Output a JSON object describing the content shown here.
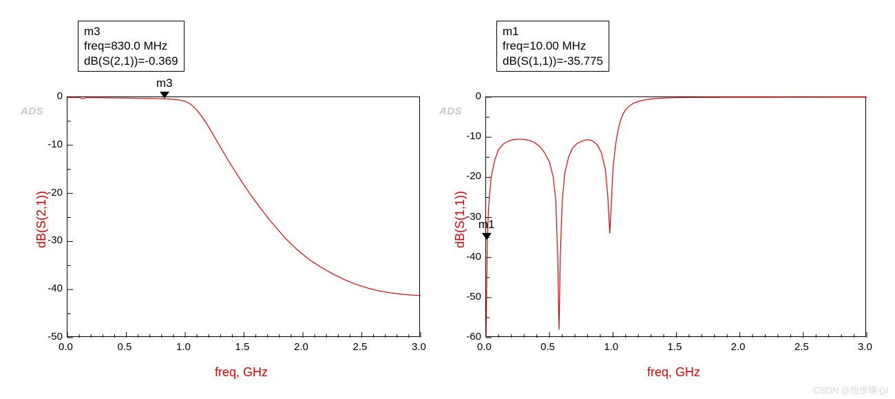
{
  "watermark": "CSDN @怡步晓心l",
  "ads_label": "ADS",
  "left": {
    "marker_box": {
      "name": "m3",
      "freq_line": "freq=830.0 MHz",
      "val_line": "dB(S(2,1))=-0.369"
    },
    "marker_point": {
      "label": "m3",
      "x_ghz": 0.83,
      "y_db": -0.369
    },
    "ylabel": "dB(S(2,1))",
    "xlabel": "freq, GHz",
    "plot": {
      "type": "line",
      "line_color": "#e00000",
      "line_width": 1.2,
      "frame_color": "#000000",
      "background_color": "#ffffff",
      "xlim": [
        0.0,
        3.0
      ],
      "xticks": [
        0.0,
        0.5,
        1.0,
        1.5,
        2.0,
        2.5,
        3.0
      ],
      "xtick_labels": [
        "0.0",
        "0.5",
        "1.0",
        "1.5",
        "2.0",
        "2.5",
        "3.0"
      ],
      "ylim": [
        -50,
        0
      ],
      "yticks": [
        -50,
        -40,
        -30,
        -20,
        -10,
        0
      ],
      "ytick_labels": [
        "-50",
        "-40",
        "-30",
        "-20",
        "-10",
        "0"
      ],
      "tick_font_size": 15,
      "ylabel_color": "#e00000",
      "xlabel_color": "#e00000",
      "data": [
        [
          0.0,
          -0.05
        ],
        [
          0.05,
          -0.05
        ],
        [
          0.1,
          -0.08
        ],
        [
          0.13,
          -0.35
        ],
        [
          0.16,
          -0.1
        ],
        [
          0.2,
          -0.1
        ],
        [
          0.3,
          -0.12
        ],
        [
          0.4,
          -0.15
        ],
        [
          0.5,
          -0.18
        ],
        [
          0.6,
          -0.22
        ],
        [
          0.7,
          -0.27
        ],
        [
          0.8,
          -0.33
        ],
        [
          0.83,
          -0.37
        ],
        [
          0.9,
          -0.45
        ],
        [
          0.95,
          -0.6
        ],
        [
          1.0,
          -0.85
        ],
        [
          1.05,
          -1.5
        ],
        [
          1.1,
          -2.7
        ],
        [
          1.15,
          -4.3
        ],
        [
          1.2,
          -6.2
        ],
        [
          1.25,
          -8.3
        ],
        [
          1.3,
          -10.4
        ],
        [
          1.35,
          -12.5
        ],
        [
          1.4,
          -14.5
        ],
        [
          1.45,
          -16.4
        ],
        [
          1.5,
          -18.3
        ],
        [
          1.55,
          -20.1
        ],
        [
          1.6,
          -21.8
        ],
        [
          1.65,
          -23.4
        ],
        [
          1.7,
          -25.0
        ],
        [
          1.75,
          -26.5
        ],
        [
          1.8,
          -27.9
        ],
        [
          1.85,
          -29.3
        ],
        [
          1.9,
          -30.5
        ],
        [
          1.95,
          -31.7
        ],
        [
          2.0,
          -32.7
        ],
        [
          2.05,
          -33.7
        ],
        [
          2.1,
          -34.5
        ],
        [
          2.15,
          -35.3
        ],
        [
          2.2,
          -36.0
        ],
        [
          2.25,
          -36.7
        ],
        [
          2.3,
          -37.3
        ],
        [
          2.35,
          -37.9
        ],
        [
          2.4,
          -38.4
        ],
        [
          2.45,
          -38.9
        ],
        [
          2.5,
          -39.3
        ],
        [
          2.55,
          -39.7
        ],
        [
          2.6,
          -40.0
        ],
        [
          2.65,
          -40.3
        ],
        [
          2.7,
          -40.5
        ],
        [
          2.75,
          -40.7
        ],
        [
          2.8,
          -40.85
        ],
        [
          2.85,
          -41.0
        ],
        [
          2.9,
          -41.1
        ],
        [
          2.95,
          -41.18
        ],
        [
          3.0,
          -41.25
        ]
      ]
    }
  },
  "right": {
    "marker_box": {
      "name": "m1",
      "freq_line": "freq=10.00 MHz",
      "val_line": "dB(S(1,1))=-35.775"
    },
    "marker_point": {
      "label": "m1",
      "x_ghz": 0.01,
      "y_db": -35.775
    },
    "ylabel": "dB(S(1,1))",
    "xlabel": "freq, GHz",
    "plot": {
      "type": "line",
      "line_color": "#e00000",
      "line_width": 1.2,
      "frame_color": "#000000",
      "background_color": "#ffffff",
      "xlim": [
        0.0,
        3.0
      ],
      "xticks": [
        0.0,
        0.5,
        1.0,
        1.5,
        2.0,
        2.5,
        3.0
      ],
      "xtick_labels": [
        "0.0",
        "0.5",
        "1.0",
        "1.5",
        "2.0",
        "2.5",
        "3.0"
      ],
      "ylim": [
        -60,
        0
      ],
      "yticks": [
        -60,
        -50,
        -40,
        -30,
        -20,
        -10,
        0
      ],
      "ytick_labels": [
        "-60",
        "-50",
        "-40",
        "-30",
        "-20",
        "-10",
        "0"
      ],
      "tick_font_size": 15,
      "ylabel_color": "#e00000",
      "xlabel_color": "#e00000",
      "data": [
        [
          0.0,
          -60.0
        ],
        [
          0.01,
          -35.78
        ],
        [
          0.02,
          -27.5
        ],
        [
          0.04,
          -20.0
        ],
        [
          0.07,
          -15.5
        ],
        [
          0.1,
          -13.0
        ],
        [
          0.14,
          -11.6
        ],
        [
          0.18,
          -10.9
        ],
        [
          0.22,
          -10.55
        ],
        [
          0.26,
          -10.5
        ],
        [
          0.3,
          -10.55
        ],
        [
          0.34,
          -10.8
        ],
        [
          0.38,
          -11.3
        ],
        [
          0.42,
          -12.2
        ],
        [
          0.46,
          -13.8
        ],
        [
          0.5,
          -16.2
        ],
        [
          0.53,
          -20.0
        ],
        [
          0.55,
          -26.0
        ],
        [
          0.565,
          -40.0
        ],
        [
          0.575,
          -58.0
        ],
        [
          0.585,
          -40.0
        ],
        [
          0.6,
          -26.0
        ],
        [
          0.62,
          -19.0
        ],
        [
          0.65,
          -15.0
        ],
        [
          0.68,
          -12.8
        ],
        [
          0.72,
          -11.5
        ],
        [
          0.76,
          -10.9
        ],
        [
          0.8,
          -10.6
        ],
        [
          0.84,
          -10.9
        ],
        [
          0.88,
          -12.0
        ],
        [
          0.91,
          -14.0
        ],
        [
          0.94,
          -18.0
        ],
        [
          0.96,
          -25.0
        ],
        [
          0.975,
          -34.0
        ],
        [
          0.985,
          -28.0
        ],
        [
          1.0,
          -18.0
        ],
        [
          1.02,
          -12.0
        ],
        [
          1.04,
          -8.2
        ],
        [
          1.06,
          -5.8
        ],
        [
          1.08,
          -4.2
        ],
        [
          1.1,
          -3.1
        ],
        [
          1.13,
          -2.2
        ],
        [
          1.16,
          -1.55
        ],
        [
          1.2,
          -1.05
        ],
        [
          1.25,
          -0.68
        ],
        [
          1.3,
          -0.45
        ],
        [
          1.35,
          -0.3
        ],
        [
          1.4,
          -0.21
        ],
        [
          1.5,
          -0.12
        ],
        [
          1.6,
          -0.075
        ],
        [
          1.7,
          -0.05
        ],
        [
          1.8,
          -0.037
        ],
        [
          1.9,
          -0.028
        ],
        [
          2.0,
          -0.022
        ],
        [
          2.2,
          -0.015
        ],
        [
          2.4,
          -0.01
        ],
        [
          2.6,
          -0.008
        ],
        [
          2.8,
          -0.006
        ],
        [
          3.0,
          -0.005
        ]
      ]
    }
  }
}
